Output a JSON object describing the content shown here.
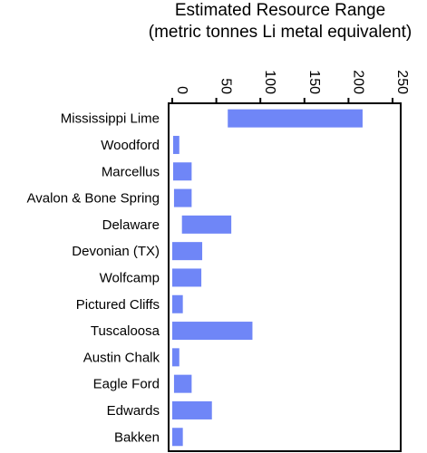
{
  "chart_data": {
    "type": "bar",
    "orientation": "horizontal-range",
    "title_lines": [
      "Estimated Resource Range",
      "(metric tonnes Li metal equivalent)"
    ],
    "xlim": [
      0,
      250
    ],
    "x_ticks": [
      "0",
      "50",
      "100",
      "150",
      "200",
      "250"
    ],
    "x_tick_values": [
      0,
      50,
      100,
      150,
      200,
      250
    ],
    "x_tick_label_rotation": "vertical",
    "x_axis_position": "top",
    "grid": false,
    "bar_color": "#6F86F7",
    "categories": [
      "Mississippi Lime",
      "Woodford",
      "Marcellus",
      "Avalon & Bone Spring",
      "Delaware",
      "Devonian (TX)",
      "Wolfcamp",
      "Pictured Cliffs",
      "Tuscaloosa",
      "Austin Chalk",
      "Eagle Ford",
      "Edwards",
      "Bakken"
    ],
    "ranges": [
      [
        63,
        216
      ],
      [
        1,
        8
      ],
      [
        1,
        22
      ],
      [
        2,
        22
      ],
      [
        11,
        67
      ],
      [
        0,
        34
      ],
      [
        0,
        33
      ],
      [
        0,
        12
      ],
      [
        0,
        91
      ],
      [
        0,
        8
      ],
      [
        2,
        22
      ],
      [
        0,
        45
      ],
      [
        0,
        12
      ]
    ]
  }
}
